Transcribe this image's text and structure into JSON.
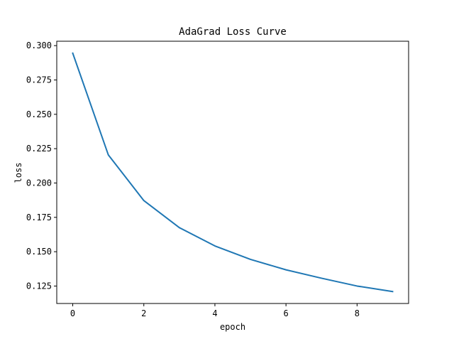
{
  "chart_data": {
    "type": "line",
    "title": "AdaGrad Loss Curve",
    "xlabel": "epoch",
    "ylabel": "loss",
    "x": [
      0,
      1,
      2,
      3,
      4,
      5,
      6,
      7,
      8,
      9
    ],
    "series": [
      {
        "values": [
          0.2945,
          0.2205,
          0.1872,
          0.1675,
          0.1542,
          0.1444,
          0.1368,
          0.1307,
          0.125,
          0.121
        ],
        "color": "#1f77b4"
      }
    ],
    "xlim": [
      -0.45,
      9.45
    ],
    "ylim": [
      0.1123,
      0.3032
    ],
    "xticks": [
      0,
      2,
      4,
      6,
      8
    ],
    "xtick_labels": [
      "0",
      "2",
      "4",
      "6",
      "8"
    ],
    "yticks": [
      0.125,
      0.15,
      0.175,
      0.2,
      0.225,
      0.25,
      0.275,
      0.3
    ],
    "ytick_labels": [
      "0.125",
      "0.150",
      "0.175",
      "0.200",
      "0.225",
      "0.250",
      "0.275",
      "0.300"
    ],
    "grid": false,
    "legend": "none"
  }
}
